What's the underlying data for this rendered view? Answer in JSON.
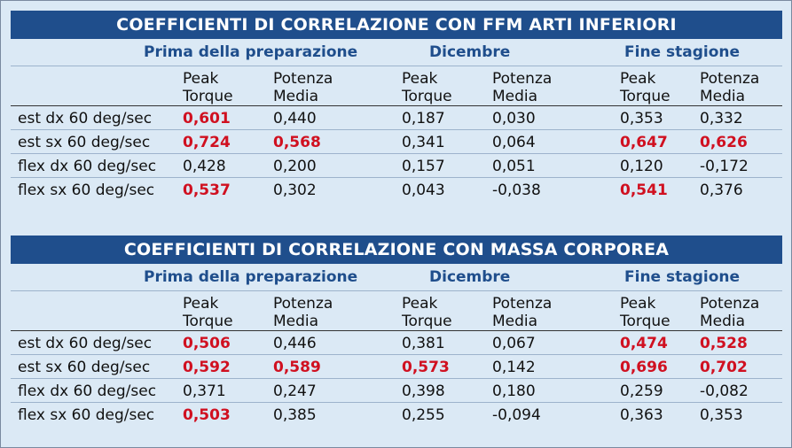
{
  "tables": [
    {
      "title": "COEFFICIENTI DI CORRELAZIONE CON FFM ARTI INFERIORI",
      "groups": [
        "Prima della preparazione",
        "Dicembre",
        "Fine stagione"
      ],
      "headers": [
        [
          "Peak",
          "Torque"
        ],
        [
          "Potenza",
          "Media"
        ],
        [
          "Peak",
          "Torque"
        ],
        [
          "Potenza",
          "Media"
        ],
        [
          "Peak",
          "Torque"
        ],
        [
          "Potenza",
          "Media"
        ]
      ],
      "rows": [
        {
          "label": "est dx 60 deg/sec",
          "values": [
            "0,601",
            "0,440",
            "0,187",
            "0,030",
            "0,353",
            "0,332"
          ],
          "highlight": [
            true,
            false,
            false,
            false,
            false,
            false
          ]
        },
        {
          "label": "est sx 60 deg/sec",
          "values": [
            "0,724",
            "0,568",
            "0,341",
            "0,064",
            "0,647",
            "0,626"
          ],
          "highlight": [
            true,
            true,
            false,
            false,
            true,
            true
          ]
        },
        {
          "label": "flex dx 60 deg/sec",
          "values": [
            "0,428",
            "0,200",
            "0,157",
            "0,051",
            "0,120",
            "-0,172"
          ],
          "highlight": [
            false,
            false,
            false,
            false,
            false,
            false
          ]
        },
        {
          "label": "flex sx 60 deg/sec",
          "values": [
            "0,537",
            "0,302",
            "0,043",
            "-0,038",
            "0,541",
            "0,376"
          ],
          "highlight": [
            true,
            false,
            false,
            false,
            true,
            false
          ]
        }
      ]
    },
    {
      "title": "COEFFICIENTI DI CORRELAZIONE CON MASSA CORPOREA",
      "groups": [
        "Prima della preparazione",
        "Dicembre",
        "Fine stagione"
      ],
      "headers": [
        [
          "Peak",
          "Torque"
        ],
        [
          "Potenza",
          "Media"
        ],
        [
          "Peak",
          "Torque"
        ],
        [
          "Potenza",
          "Media"
        ],
        [
          "Peak",
          "Torque"
        ],
        [
          "Potenza",
          "Media"
        ]
      ],
      "rows": [
        {
          "label": "est dx 60 deg/sec",
          "values": [
            "0,506",
            "0,446",
            "0,381",
            "0,067",
            "0,474",
            "0,528"
          ],
          "highlight": [
            true,
            false,
            false,
            false,
            true,
            true
          ]
        },
        {
          "label": "est sx 60 deg/sec",
          "values": [
            "0,592",
            "0,589",
            "0,573",
            "0,142",
            "0,696",
            "0,702"
          ],
          "highlight": [
            true,
            true,
            true,
            false,
            true,
            true
          ]
        },
        {
          "label": "flex dx 60 deg/sec",
          "values": [
            "0,371",
            "0,247",
            "0,398",
            "0,180",
            "0,259",
            "-0,082"
          ],
          "highlight": [
            false,
            false,
            false,
            false,
            false,
            false
          ]
        },
        {
          "label": "flex sx 60 deg/sec",
          "values": [
            "0,503",
            "0,385",
            "0,255",
            "-0,094",
            "0,363",
            "0,353"
          ],
          "highlight": [
            true,
            false,
            false,
            false,
            false,
            false
          ]
        }
      ]
    }
  ],
  "colors": {
    "title_bg": "#1f4e8c",
    "group_text": "#1f4e8c",
    "highlight": "#d01020",
    "background": "#dbe9f5"
  }
}
